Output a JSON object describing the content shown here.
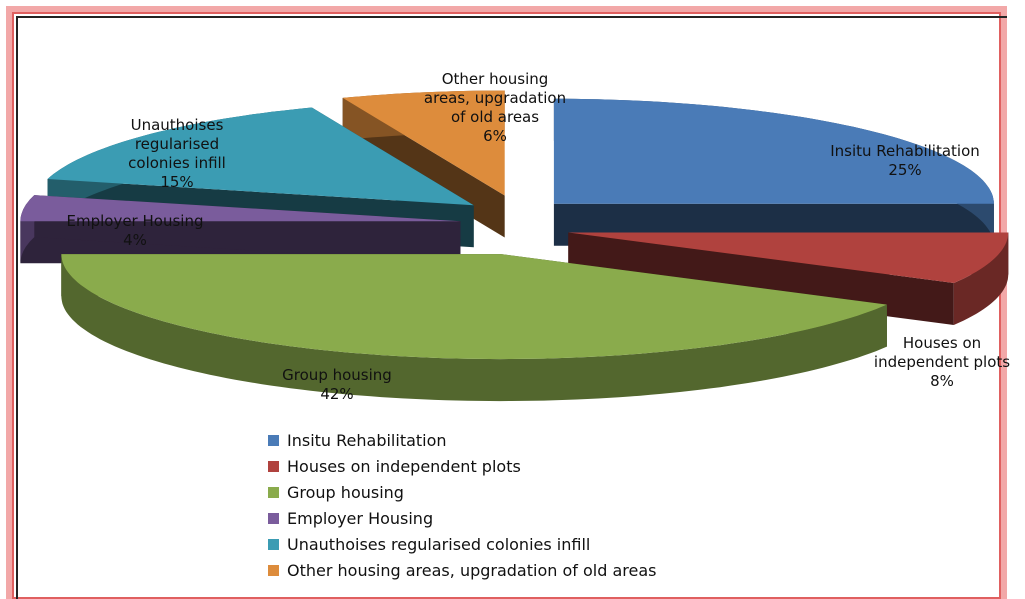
{
  "chart_data": {
    "type": "pie3d",
    "categories": [
      "Insitu Rehabilitation",
      "Houses on independent plots",
      "Group housing",
      "Employer Housing",
      "Unauthoises regularised colonies infill",
      "Other housing areas, upgradation of old areas"
    ],
    "values": [
      25,
      8,
      42,
      4,
      15,
      6
    ],
    "value_labels": [
      "25%",
      "8%",
      "42%",
      "4%",
      "15%",
      "6%"
    ],
    "colors": [
      "#4a7bb7",
      "#b0423e",
      "#8aab4c",
      "#7a5c9c",
      "#3b9cb3",
      "#dd8c3c"
    ],
    "legend": "bottom"
  }
}
